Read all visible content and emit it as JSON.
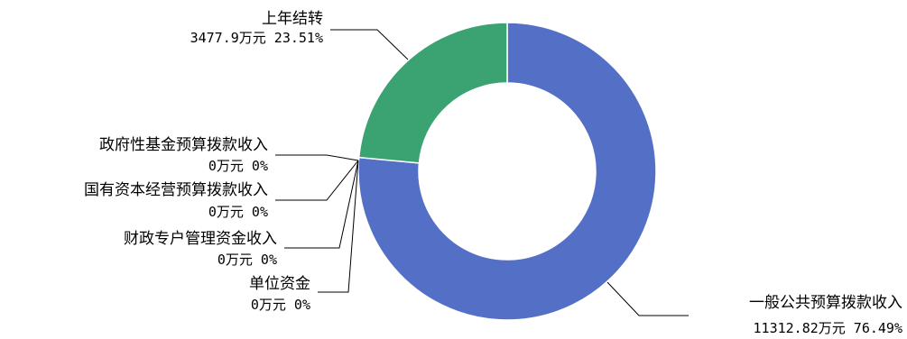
{
  "chart_data": {
    "type": "pie",
    "variant": "donut",
    "title": "",
    "unit": "万元",
    "slices": [
      {
        "name": "一般公共预算拨款收入",
        "value": 11312.82,
        "value_label": "11312.82万元",
        "percent_label": "76.49%",
        "color": "#5470c6"
      },
      {
        "name": "政府性基金预算拨款收入",
        "value": 0,
        "value_label": "0万元",
        "percent_label": "0%",
        "color": "#91cc75"
      },
      {
        "name": "国有资本经营预算拨款收入",
        "value": 0,
        "value_label": "0万元",
        "percent_label": "0%",
        "color": "#fac858"
      },
      {
        "name": "财政专户管理资金收入",
        "value": 0,
        "value_label": "0万元",
        "percent_label": "0%",
        "color": "#ee6666"
      },
      {
        "name": "单位资金",
        "value": 0,
        "value_label": "0万元",
        "percent_label": "0%",
        "color": "#73c0de"
      },
      {
        "name": "上年结转",
        "value": 3477.9,
        "value_label": "3477.9万元",
        "percent_label": "23.51%",
        "color": "#3ba272"
      }
    ]
  }
}
